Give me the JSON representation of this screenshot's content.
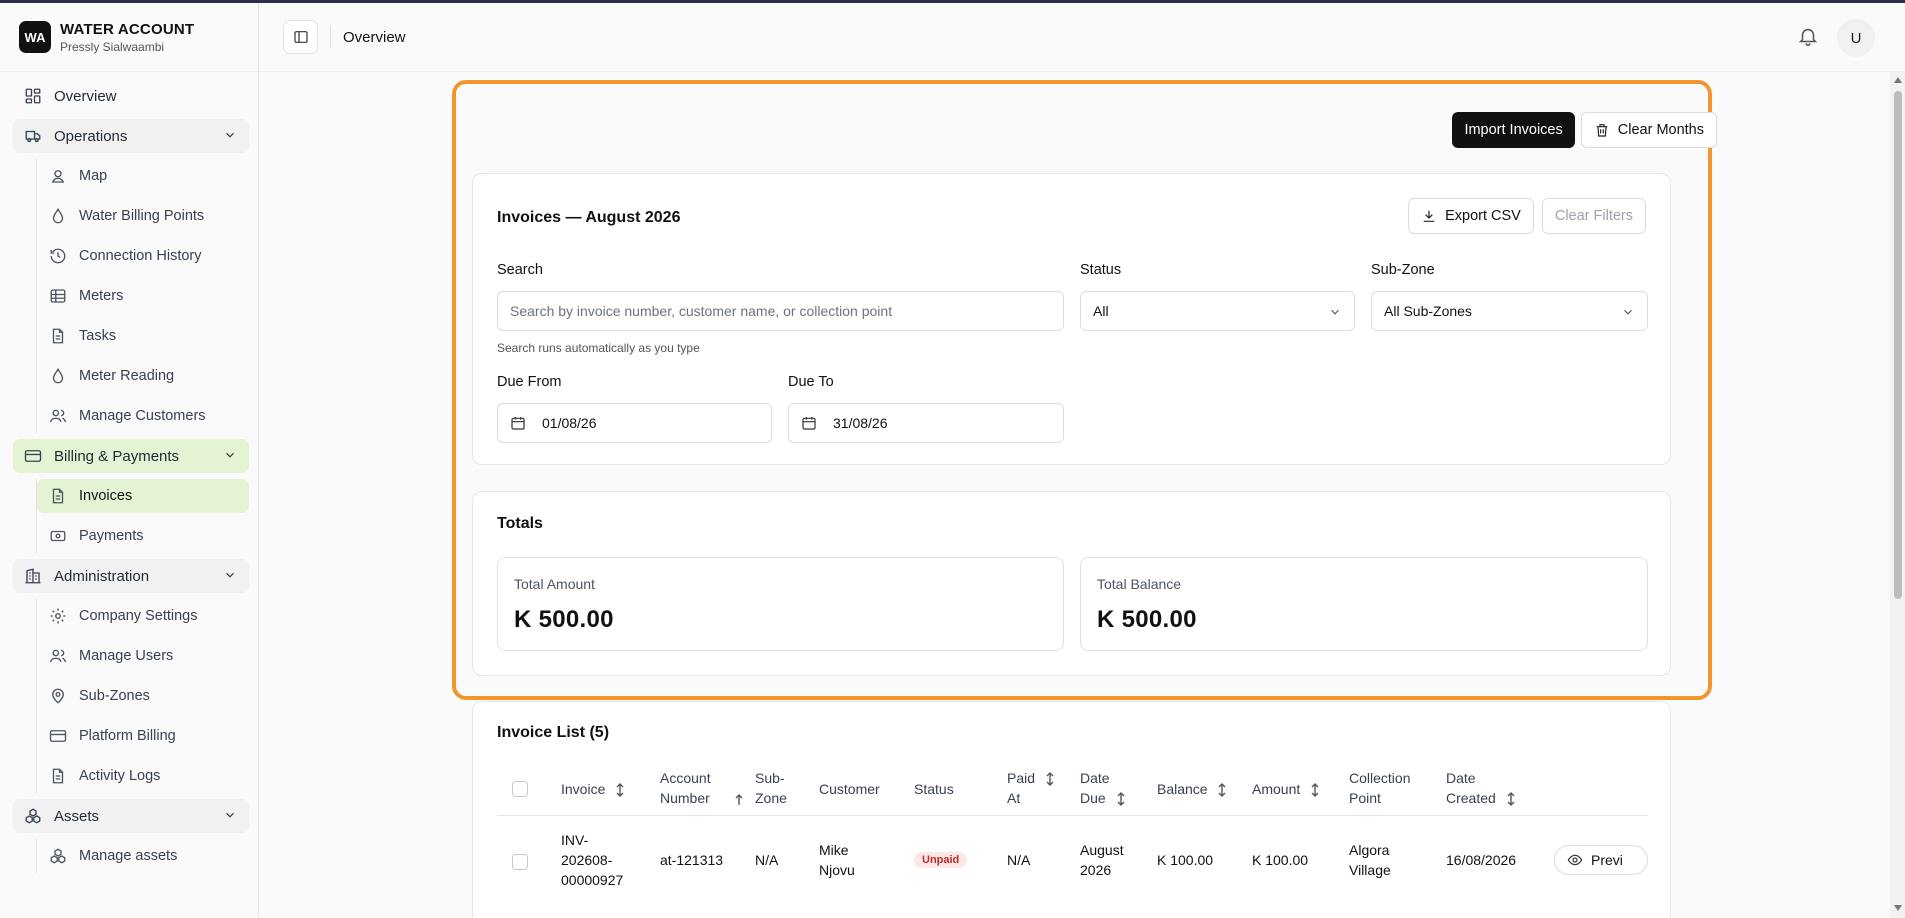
{
  "brand": {
    "logo": "WA",
    "title": "WATER ACCOUNT",
    "subtitle": "Pressly Sialwaambi"
  },
  "sidebar": {
    "overview": "Overview",
    "operations": {
      "label": "Operations",
      "items": [
        "Map",
        "Water Billing Points",
        "Connection History",
        "Meters",
        "Tasks",
        "Meter Reading",
        "Manage Customers"
      ]
    },
    "billing": {
      "label": "Billing & Payments",
      "items": [
        "Invoices",
        "Payments"
      ]
    },
    "administration": {
      "label": "Administration",
      "items": [
        "Company Settings",
        "Manage Users",
        "Sub-Zones",
        "Platform Billing",
        "Activity Logs"
      ]
    },
    "assets": {
      "label": "Assets",
      "items": [
        "Manage assets"
      ]
    }
  },
  "header": {
    "title": "Overview",
    "avatar": "U"
  },
  "actions": {
    "import": "Import Invoices",
    "clear_months": "Clear Months"
  },
  "filters": {
    "title": "Invoices — August 2026",
    "export": "Export CSV",
    "clear_filters": "Clear Filters",
    "search_label": "Search",
    "search_placeholder": "Search by invoice number, customer name, or collection point",
    "search_hint": "Search runs automatically as you type",
    "status_label": "Status",
    "status_value": "All",
    "subzone_label": "Sub-Zone",
    "subzone_value": "All Sub-Zones",
    "due_from_label": "Due From",
    "due_from_value": "01/08/26",
    "due_to_label": "Due To",
    "due_to_value": "31/08/26"
  },
  "totals": {
    "title": "Totals",
    "amount_label": "Total Amount",
    "amount_value": "K 500.00",
    "balance_label": "Total Balance",
    "balance_value": "K 500.00"
  },
  "invoice_list": {
    "title": "Invoice List (5)",
    "columns": {
      "invoice": "Invoice",
      "account_1": "Account",
      "account_2": "Number",
      "subzone_1": "Sub-",
      "subzone_2": "Zone",
      "customer": "Customer",
      "status": "Status",
      "paid_1": "Paid",
      "paid_2": "At",
      "due_1": "Date",
      "due_2": "Due",
      "balance": "Balance",
      "amount": "Amount",
      "cp_1": "Collection",
      "cp_2": "Point",
      "created_1": "Date",
      "created_2": "Created"
    },
    "row": {
      "invoice_1": "INV-",
      "invoice_2": "202608-",
      "invoice_3": "00000927",
      "account": "at-121313",
      "subzone": "N/A",
      "customer_1": "Mike",
      "customer_2": "Njovu",
      "status": "Unpaid",
      "paid_at": "N/A",
      "due_1": "August",
      "due_2": "2026",
      "balance": "K 100.00",
      "amount": "K 100.00",
      "cp_1": "Algora",
      "cp_2": "Village",
      "created": "16/08/2026",
      "preview": "Previ"
    }
  }
}
